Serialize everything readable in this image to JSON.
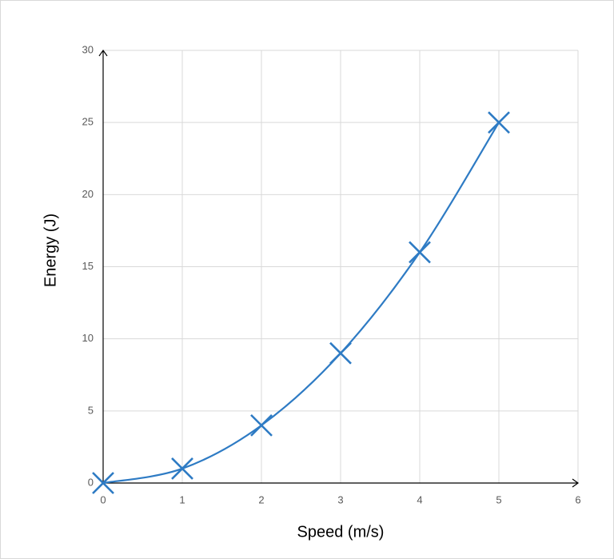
{
  "chart_data": {
    "type": "scatter",
    "x_label": "Speed (m/s)",
    "y_label": "Energy (J)",
    "series": [
      {
        "name": "Energy",
        "color": "#2e7bc4",
        "x": [
          0,
          1,
          2,
          3,
          4,
          5
        ],
        "values": [
          0,
          1,
          4,
          9,
          16,
          25
        ]
      }
    ],
    "xlim": [
      0,
      6
    ],
    "ylim": [
      0,
      30
    ],
    "xticks": [
      0,
      1,
      2,
      3,
      4,
      5,
      6
    ],
    "yticks": [
      0,
      5,
      10,
      15,
      20,
      25,
      30
    ],
    "grid": true,
    "smooth_line": true,
    "marker": "x"
  }
}
